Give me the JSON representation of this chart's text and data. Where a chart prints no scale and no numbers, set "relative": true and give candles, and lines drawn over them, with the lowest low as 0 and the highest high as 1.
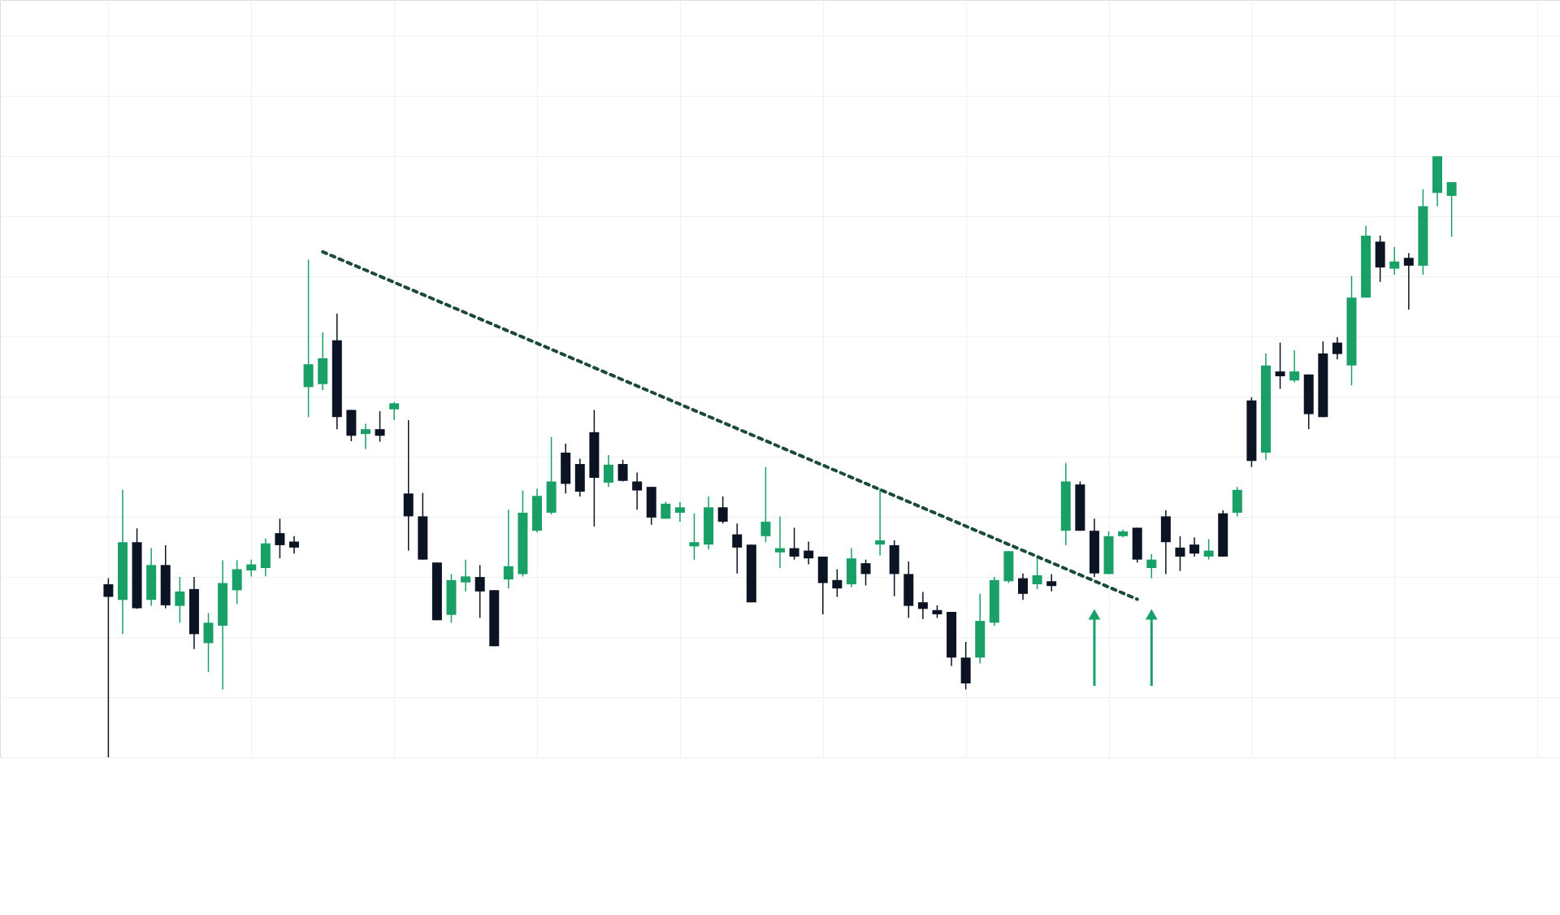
{
  "chart_data": {
    "type": "candlestick",
    "relative": true,
    "grid": true,
    "categories": [
      null,
      null,
      null,
      null,
      null,
      null,
      null,
      null,
      null,
      null,
      null,
      null,
      null,
      null,
      null,
      null,
      null,
      null,
      null,
      null,
      null,
      null,
      null,
      null,
      null,
      null,
      null,
      null,
      null,
      null,
      null,
      null,
      null,
      null,
      null,
      null,
      null,
      null,
      null,
      null,
      null,
      null,
      null,
      null,
      null,
      null,
      null,
      null,
      null,
      null,
      null,
      null,
      null,
      null,
      null,
      null,
      null,
      null,
      null,
      null,
      null,
      null,
      null,
      null,
      null,
      null,
      null,
      null,
      null,
      null,
      null,
      null,
      null,
      null,
      null,
      null,
      null,
      null,
      null,
      null,
      null,
      null,
      null,
      null,
      null,
      null,
      null,
      null,
      null,
      null,
      null,
      null,
      null,
      null,
      null
    ],
    "ohlc": [
      [
        0.288,
        0.298,
        0,
        0.267
      ],
      [
        0.262,
        0.445,
        0.205,
        0.358
      ],
      [
        0.358,
        0.381,
        0.247,
        0.248
      ],
      [
        0.262,
        0.348,
        0.252,
        0.32
      ],
      [
        0.32,
        0.353,
        0.248,
        0.253
      ],
      [
        0.252,
        0.3,
        0.224,
        0.276
      ],
      [
        0.28,
        0.3,
        0.18,
        0.205
      ],
      [
        0.19,
        0.24,
        0.142,
        0.224
      ],
      [
        0.219,
        0.328,
        0.113,
        0.29
      ],
      [
        0.278,
        0.328,
        0.255,
        0.313
      ],
      [
        0.311,
        0.329,
        0.301,
        0.321
      ],
      [
        0.315,
        0.364,
        0.301,
        0.356
      ],
      [
        0.373,
        0.397,
        0.331,
        0.353
      ],
      [
        0.359,
        0.368,
        0.339,
        0.349
      ],
      [
        0.616,
        0.828,
        0.566,
        0.654
      ],
      [
        0.621,
        0.707,
        0.611,
        0.664
      ],
      [
        0.694,
        0.738,
        0.546,
        0.566
      ],
      [
        0.578,
        0.578,
        0.526,
        0.535
      ],
      [
        0.538,
        0.555,
        0.513,
        0.546
      ],
      [
        0.546,
        0.576,
        0.525,
        0.535
      ],
      [
        0.579,
        0.591,
        0.561,
        0.589
      ],
      [
        0.439,
        0.561,
        0.344,
        0.401
      ],
      [
        0.401,
        0.44,
        0.329,
        0.329
      ],
      [
        0.324,
        0.324,
        0.228,
        0.228
      ],
      [
        0.237,
        0.305,
        0.224,
        0.295
      ],
      [
        0.291,
        0.329,
        0.276,
        0.301
      ],
      [
        0.3,
        0.32,
        0.232,
        0.276
      ],
      [
        0.278,
        0.278,
        0.185,
        0.185
      ],
      [
        0.296,
        0.412,
        0.281,
        0.318
      ],
      [
        0.305,
        0.444,
        0.301,
        0.407
      ],
      [
        0.377,
        0.447,
        0.374,
        0.435
      ],
      [
        0.407,
        0.533,
        0.404,
        0.459
      ],
      [
        0.507,
        0.522,
        0.439,
        0.455
      ],
      [
        0.488,
        0.497,
        0.434,
        0.442
      ],
      [
        0.541,
        0.578,
        0.384,
        0.465
      ],
      [
        0.457,
        0.503,
        0.45,
        0.487
      ],
      [
        0.488,
        0.495,
        0.459,
        0.46
      ],
      [
        0.459,
        0.474,
        0.412,
        0.444
      ],
      [
        0.45,
        0.45,
        0.387,
        0.399
      ],
      [
        0.397,
        0.425,
        0.397,
        0.422
      ],
      [
        0.407,
        0.425,
        0.392,
        0.416
      ],
      [
        0.351,
        0.406,
        0.329,
        0.358
      ],
      [
        0.354,
        0.434,
        0.346,
        0.416
      ],
      [
        0.416,
        0.434,
        0.389,
        0.392
      ],
      [
        0.371,
        0.389,
        0.306,
        0.349
      ],
      [
        0.354,
        0.354,
        0.258,
        0.258
      ],
      [
        0.368,
        0.483,
        0.358,
        0.392
      ],
      [
        0.341,
        0.401,
        0.315,
        0.348
      ],
      [
        0.348,
        0.382,
        0.329,
        0.334
      ],
      [
        0.344,
        0.359,
        0.321,
        0.331
      ],
      [
        0.334,
        0.334,
        0.238,
        0.29
      ],
      [
        0.295,
        0.313,
        0.267,
        0.281
      ],
      [
        0.288,
        0.348,
        0.283,
        0.331
      ],
      [
        0.323,
        0.329,
        0.286,
        0.305
      ],
      [
        0.354,
        0.447,
        0.336,
        0.361
      ],
      [
        0.353,
        0.361,
        0.268,
        0.305
      ],
      [
        0.305,
        0.326,
        0.232,
        0.252
      ],
      [
        0.258,
        0.275,
        0.23,
        0.247
      ],
      [
        0.245,
        0.253,
        0.232,
        0.238
      ],
      [
        0.242,
        0.242,
        0.152,
        0.166
      ],
      [
        0.166,
        0.192,
        0.113,
        0.123
      ],
      [
        0.166,
        0.272,
        0.156,
        0.227
      ],
      [
        0.224,
        0.3,
        0.219,
        0.295
      ],
      [
        0.293,
        0.343,
        0.29,
        0.343
      ],
      [
        0.298,
        0.306,
        0.262,
        0.272
      ],
      [
        0.288,
        0.334,
        0.28,
        0.303
      ],
      [
        0.293,
        0.305,
        0.276,
        0.285
      ],
      [
        0.377,
        0.49,
        0.353,
        0.459
      ],
      [
        0.454,
        0.459,
        0.377,
        0.377
      ],
      [
        0.377,
        0.397,
        0.3,
        0.306
      ],
      [
        0.305,
        0.376,
        0.305,
        0.368
      ],
      [
        0.368,
        0.379,
        0.366,
        0.376
      ],
      [
        0.382,
        0.382,
        0.324,
        0.329
      ],
      [
        0.315,
        0.338,
        0.298,
        0.329
      ],
      [
        0.401,
        0.411,
        0.305,
        0.358
      ],
      [
        0.349,
        0.368,
        0.31,
        0.334
      ],
      [
        0.354,
        0.366,
        0.334,
        0.339
      ],
      [
        0.334,
        0.363,
        0.329,
        0.344
      ],
      [
        0.406,
        0.411,
        0.334,
        0.334
      ],
      [
        0.407,
        0.45,
        0.401,
        0.445
      ],
      [
        0.594,
        0.599,
        0.483,
        0.493
      ],
      [
        0.507,
        0.672,
        0.495,
        0.652
      ],
      [
        0.642,
        0.69,
        0.613,
        0.634
      ],
      [
        0.627,
        0.677,
        0.624,
        0.642
      ],
      [
        0.637,
        0.637,
        0.546,
        0.571
      ],
      [
        0.672,
        0.692,
        0.566,
        0.566
      ],
      [
        0.69,
        0.699,
        0.662,
        0.671
      ],
      [
        0.652,
        0.801,
        0.619,
        0.765
      ],
      [
        0.765,
        0.884,
        0.765,
        0.868
      ],
      [
        0.858,
        0.868,
        0.791,
        0.815
      ],
      [
        0.813,
        0.849,
        0.803,
        0.825
      ],
      [
        0.831,
        0.839,
        0.745,
        0.818
      ],
      [
        0.818,
        0.945,
        0.803,
        0.917
      ],
      [
        0.939,
        1,
        0.917,
        1
      ],
      [
        0.934,
        0.957,
        0.866,
        0.957
      ]
    ],
    "colors": [
      "#0c1322",
      "#18a067",
      "#0c1322",
      "#18a067",
      "#0c1322",
      "#18a067",
      "#0c1322",
      "#18a067",
      "#18a067",
      "#18a067",
      "#18a067",
      "#18a067",
      "#0c1322",
      "#0c1322",
      "#18a067",
      "#18a067",
      "#0c1322",
      "#0c1322",
      "#18a067",
      "#0c1322",
      "#18a067",
      "#0c1322",
      "#0c1322",
      "#0c1322",
      "#18a067",
      "#18a067",
      "#0c1322",
      "#0c1322",
      "#18a067",
      "#18a067",
      "#18a067",
      "#18a067",
      "#0c1322",
      "#0c1322",
      "#0c1322",
      "#18a067",
      "#0c1322",
      "#0c1322",
      "#0c1322",
      "#18a067",
      "#18a067",
      "#18a067",
      "#18a067",
      "#0c1322",
      "#0c1322",
      "#0c1322",
      "#18a067",
      "#18a067",
      "#0c1322",
      "#0c1322",
      "#0c1322",
      "#0c1322",
      "#18a067",
      "#0c1322",
      "#18a067",
      "#0c1322",
      "#0c1322",
      "#0c1322",
      "#0c1322",
      "#0c1322",
      "#0c1322",
      "#18a067",
      "#18a067",
      "#18a067",
      "#0c1322",
      "#18a067",
      "#0c1322",
      "#18a067",
      "#0c1322",
      "#0c1322",
      "#18a067",
      "#18a067",
      "#0c1322",
      "#18a067",
      "#0c1322",
      "#0c1322",
      "#0c1322",
      "#18a067",
      "#0c1322",
      "#18a067",
      "#0c1322",
      "#18a067",
      "#0c1322",
      "#18a067",
      "#0c1322",
      "#0c1322",
      "#0c1322",
      "#18a067",
      "#18a067",
      "#0c1322",
      "#18a067",
      "#0c1322",
      "#18a067",
      "#18a067",
      "#18a067"
    ],
    "series": [
      {
        "type": "line",
        "line_style": "dotted",
        "color": "#1b4a3a",
        "values": [
          null,
          null,
          null,
          null,
          null,
          null,
          null,
          null,
          null,
          null,
          null,
          null,
          null,
          null,
          null,
          0.841,
          null,
          null,
          null,
          null,
          null,
          null,
          null,
          null,
          null,
          null,
          null,
          null,
          null,
          null,
          null,
          null,
          null,
          null,
          null,
          null,
          null,
          null,
          null,
          null,
          null,
          null,
          null,
          null,
          null,
          null,
          null,
          null,
          null,
          null,
          null,
          null,
          null,
          null,
          null,
          null,
          null,
          null,
          null,
          null,
          null,
          null,
          null,
          null,
          null,
          null,
          null,
          null,
          null,
          null,
          null,
          null,
          0.263,
          null,
          null,
          null,
          null,
          null,
          null,
          null,
          null,
          null,
          null,
          null,
          null,
          null,
          null,
          null,
          null,
          null,
          null,
          null,
          null,
          null,
          null
        ]
      },
      {
        "type": "scatter",
        "marker": "triangle",
        "color": "#18a067",
        "values": [
          null,
          null,
          null,
          null,
          null,
          null,
          null,
          null,
          null,
          null,
          null,
          null,
          null,
          null,
          null,
          null,
          null,
          null,
          null,
          null,
          null,
          null,
          null,
          null,
          null,
          null,
          null,
          null,
          null,
          null,
          null,
          null,
          null,
          null,
          null,
          null,
          null,
          null,
          null,
          null,
          null,
          null,
          null,
          null,
          null,
          null,
          null,
          null,
          null,
          null,
          null,
          null,
          null,
          null,
          null,
          null,
          null,
          null,
          null,
          null,
          null,
          null,
          null,
          null,
          null,
          null,
          null,
          null,
          null,
          0.238,
          null,
          null,
          null,
          0.238,
          null,
          null,
          null,
          null,
          null,
          null,
          null,
          null,
          null,
          null,
          null,
          null,
          null,
          null,
          null,
          null,
          null,
          null,
          null,
          null,
          null
        ],
        "errors": [
          null,
          null,
          null,
          null,
          null,
          null,
          null,
          null,
          null,
          null,
          null,
          null,
          null,
          null,
          null,
          null,
          null,
          null,
          null,
          null,
          null,
          null,
          null,
          null,
          null,
          null,
          null,
          null,
          null,
          null,
          null,
          null,
          null,
          null,
          null,
          null,
          null,
          null,
          null,
          null,
          null,
          null,
          null,
          null,
          null,
          null,
          null,
          null,
          null,
          null,
          null,
          null,
          null,
          null,
          null,
          null,
          null,
          null,
          null,
          null,
          null,
          null,
          null,
          null,
          null,
          null,
          null,
          null,
          null,
          [
            0.119,
            0.238
          ],
          null,
          null,
          null,
          [
            0.119,
            0.238
          ],
          null,
          null,
          null,
          null,
          null,
          null,
          null,
          null,
          null,
          null,
          null,
          null,
          null,
          null,
          null,
          null,
          null,
          null,
          null,
          null,
          null
        ]
      }
    ]
  }
}
